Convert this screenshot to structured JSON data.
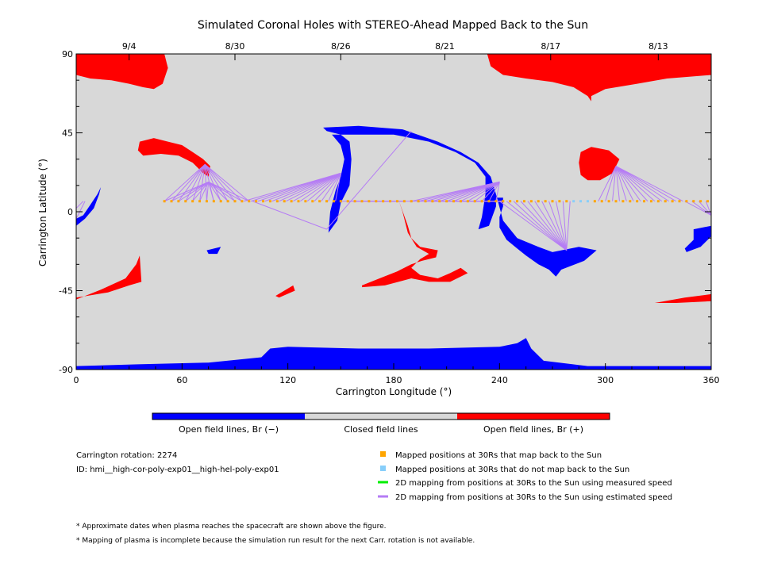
{
  "chart_data": {
    "type": "heatmap",
    "title": "Simulated Coronal Holes with STEREO-Ahead Mapped Back to the Sun",
    "xlabel": "Carrington Longitude (°)",
    "ylabel": "Carrington Latitude (°)",
    "xlim": [
      0,
      360
    ],
    "ylim": [
      -90,
      90
    ],
    "x_ticks": [
      0,
      60,
      120,
      180,
      240,
      300,
      360
    ],
    "y_ticks": [
      -90,
      -45,
      0,
      45,
      90
    ],
    "top_axis": {
      "labels": [
        {
          "label": "9/4",
          "lon": 30
        },
        {
          "label": "8/30",
          "lon": 90
        },
        {
          "label": "8/26",
          "lon": 150
        },
        {
          "label": "8/21",
          "lon": 209
        },
        {
          "label": "8/17",
          "lon": 269
        },
        {
          "label": "8/13",
          "lon": 330
        }
      ]
    },
    "colors": {
      "open_negative": "#0000ff",
      "closed": "#d8d8d8",
      "open_positive": "#ff0000",
      "mapped_back": "#ffa500",
      "not_mapped_back": "#87cefa",
      "measured_speed": "#00ee00",
      "estimated_speed": "#b57cf5"
    },
    "colorbar": {
      "labels": [
        "Open field lines, Br (−)",
        "Closed field lines",
        "Open field lines, Br (+)"
      ]
    },
    "regions": {
      "positive": [
        [
          [
            0,
            90
          ],
          [
            50,
            90
          ],
          [
            52,
            82
          ],
          [
            49,
            73
          ],
          [
            44,
            70
          ],
          [
            38,
            71
          ],
          [
            30,
            73
          ],
          [
            20,
            75
          ],
          [
            8,
            76
          ],
          [
            0,
            78
          ]
        ],
        [
          [
            233,
            90
          ],
          [
            360,
            90
          ],
          [
            360,
            78
          ],
          [
            335,
            76
          ],
          [
            318,
            73
          ],
          [
            300,
            70
          ],
          [
            292,
            66
          ],
          [
            292,
            63
          ],
          [
            290,
            66
          ],
          [
            282,
            71
          ],
          [
            270,
            74
          ],
          [
            255,
            76
          ],
          [
            242,
            78
          ],
          [
            235,
            83
          ]
        ],
        [
          [
            36,
            40
          ],
          [
            44,
            42
          ],
          [
            52,
            40
          ],
          [
            60,
            38
          ],
          [
            66,
            34
          ],
          [
            72,
            30
          ],
          [
            76,
            26
          ],
          [
            75,
            20
          ],
          [
            72,
            22
          ],
          [
            66,
            28
          ],
          [
            58,
            32
          ],
          [
            48,
            33
          ],
          [
            38,
            32
          ],
          [
            35,
            35
          ]
        ],
        [
          [
            286,
            34
          ],
          [
            292,
            37
          ],
          [
            302,
            35
          ],
          [
            308,
            30
          ],
          [
            304,
            22
          ],
          [
            297,
            18
          ],
          [
            290,
            18
          ],
          [
            286,
            21
          ],
          [
            285,
            28
          ]
        ],
        [
          [
            0,
            -50
          ],
          [
            15,
            -44
          ],
          [
            28,
            -38
          ],
          [
            34,
            -30
          ],
          [
            36,
            -25
          ],
          [
            37,
            -40
          ],
          [
            30,
            -42
          ],
          [
            18,
            -46
          ],
          [
            6,
            -48
          ],
          [
            0,
            -49
          ]
        ],
        [
          [
            183,
            6
          ],
          [
            188,
            -8
          ],
          [
            190,
            -15
          ],
          [
            195,
            -20
          ],
          [
            205,
            -22
          ],
          [
            204,
            -26
          ],
          [
            196,
            -28
          ],
          [
            190,
            -30
          ],
          [
            182,
            -34
          ],
          [
            172,
            -38
          ],
          [
            162,
            -42
          ],
          [
            162,
            -43
          ],
          [
            175,
            -42
          ],
          [
            190,
            -38
          ],
          [
            200,
            -40
          ],
          [
            212,
            -40
          ],
          [
            222,
            -35
          ],
          [
            218,
            -32
          ],
          [
            212,
            -35
          ],
          [
            205,
            -38
          ],
          [
            195,
            -36
          ],
          [
            190,
            -32
          ],
          [
            195,
            -27
          ],
          [
            200,
            -24
          ],
          [
            193,
            -20
          ],
          [
            188,
            -12
          ],
          [
            185,
            0
          ]
        ],
        [
          [
            113,
            -48
          ],
          [
            123,
            -42
          ],
          [
            124,
            -45
          ],
          [
            115,
            -49
          ]
        ],
        [
          [
            328,
            -52
          ],
          [
            345,
            -49
          ],
          [
            360,
            -47
          ],
          [
            360,
            -51
          ],
          [
            340,
            -52
          ]
        ]
      ],
      "negative": [
        [
          [
            0,
            -88
          ],
          [
            35,
            -87
          ],
          [
            75,
            -86
          ],
          [
            105,
            -83
          ],
          [
            110,
            -78
          ],
          [
            120,
            -77
          ],
          [
            160,
            -78
          ],
          [
            200,
            -78
          ],
          [
            240,
            -77
          ],
          [
            250,
            -75
          ],
          [
            255,
            -72
          ],
          [
            258,
            -78
          ],
          [
            265,
            -85
          ],
          [
            290,
            -88
          ],
          [
            360,
            -88
          ],
          [
            360,
            -90
          ],
          [
            0,
            -90
          ]
        ],
        [
          [
            140,
            48
          ],
          [
            160,
            49
          ],
          [
            185,
            47
          ],
          [
            205,
            40
          ],
          [
            218,
            34
          ],
          [
            228,
            28
          ],
          [
            235,
            20
          ],
          [
            238,
            10
          ],
          [
            242,
            -5
          ],
          [
            250,
            -15
          ],
          [
            262,
            -20
          ],
          [
            270,
            -23
          ],
          [
            285,
            -20
          ],
          [
            295,
            -22
          ],
          [
            288,
            -28
          ],
          [
            275,
            -33
          ],
          [
            272,
            -37
          ],
          [
            268,
            -33
          ],
          [
            262,
            -30
          ],
          [
            255,
            -25
          ],
          [
            250,
            -21
          ],
          [
            244,
            -16
          ],
          [
            240,
            -9
          ],
          [
            240,
            -3
          ],
          [
            242,
            3
          ],
          [
            242,
            8
          ],
          [
            238,
            8
          ],
          [
            238,
            3
          ],
          [
            234,
            -8
          ],
          [
            228,
            -10
          ],
          [
            230,
            -3
          ],
          [
            232,
            10
          ],
          [
            232,
            20
          ],
          [
            226,
            28
          ],
          [
            215,
            34
          ],
          [
            200,
            40
          ],
          [
            180,
            44
          ],
          [
            160,
            44
          ],
          [
            145,
            44
          ],
          [
            150,
            38
          ],
          [
            152,
            30
          ],
          [
            150,
            20
          ],
          [
            147,
            12
          ],
          [
            144,
            0
          ],
          [
            143,
            -12
          ],
          [
            148,
            -5
          ],
          [
            150,
            5
          ],
          [
            155,
            15
          ],
          [
            156,
            30
          ],
          [
            155,
            40
          ],
          [
            150,
            44
          ],
          [
            142,
            46
          ]
        ],
        [
          [
            0,
            -8
          ],
          [
            5,
            -4
          ],
          [
            10,
            2
          ],
          [
            13,
            10
          ],
          [
            14,
            14
          ],
          [
            12,
            10
          ],
          [
            8,
            4
          ],
          [
            4,
            -2
          ],
          [
            0,
            -4
          ]
        ],
        [
          [
            350,
            -10
          ],
          [
            360,
            -8
          ],
          [
            360,
            -14
          ],
          [
            354,
            -20
          ],
          [
            346,
            -23
          ],
          [
            345,
            -21
          ],
          [
            350,
            -16
          ]
        ],
        [
          [
            74,
            -22
          ],
          [
            82,
            -20
          ],
          [
            80,
            -24
          ],
          [
            75,
            -24
          ]
        ]
      ]
    },
    "mapped_points": {
      "lat": 6,
      "lon_start": 50,
      "lon_end": 360,
      "step": 4,
      "not_mapped_lon_range": [
        281,
        293
      ]
    },
    "estimated_speed_fans": [
      {
        "foot": [
          73,
          27
        ],
        "from_lon": 50,
        "to_lon": 100
      },
      {
        "foot": [
          75,
          17
        ],
        "from_lon": 50,
        "to_lon": 100
      },
      {
        "foot": [
          150,
          22
        ],
        "from_lon": 95,
        "to_lon": 150
      },
      {
        "foot": [
          185,
          6
        ],
        "from_lon": 150,
        "to_lon": 190
      },
      {
        "foot": [
          240,
          17
        ],
        "from_lon": 190,
        "to_lon": 240
      },
      {
        "foot": [
          242,
          6
        ],
        "from_lon": 190,
        "to_lon": 240
      },
      {
        "foot": [
          278,
          -22
        ],
        "from_lon": 240,
        "to_lon": 280
      },
      {
        "foot": [
          306,
          26
        ],
        "from_lon": 296,
        "to_lon": 345
      },
      {
        "foot": [
          360,
          -2
        ],
        "from_lon": 345,
        "to_lon": 360
      }
    ],
    "estimated_speed_lines": [
      [
        [
          100,
          6
        ],
        [
          142,
          -10
        ]
      ],
      [
        [
          142,
          -10
        ],
        [
          190,
          46
        ]
      ],
      [
        [
          0,
          -4
        ],
        [
          5,
          6
        ]
      ],
      [
        [
          0,
          2
        ],
        [
          4,
          6
        ]
      ]
    ],
    "legend": {
      "placement": "bottom-right",
      "items": [
        {
          "label": "Mapped positions at 30Rs that map back to the Sun",
          "kind": "square",
          "color": "#ffa500"
        },
        {
          "label": "Mapped positions at 30Rs that do not map back to the Sun",
          "kind": "square",
          "color": "#87cefa"
        },
        {
          "label": "2D mapping from positions at 30Rs to the Sun using measured speed",
          "kind": "line",
          "color": "#00ee00"
        },
        {
          "label": "2D mapping from positions at 30Rs to the Sun using estimated speed",
          "kind": "line",
          "color": "#b57cf5"
        }
      ]
    },
    "info": {
      "rotation": "Carrington rotation: 2274",
      "id": "ID: hmi__high-cor-poly-exp01__high-hel-poly-exp01"
    },
    "notes": [
      "* Approximate dates when plasma reaches the spacecraft are shown above the figure.",
      "* Mapping of plasma is incomplete because the simulation run result for the next Carr. rotation is not available."
    ]
  }
}
